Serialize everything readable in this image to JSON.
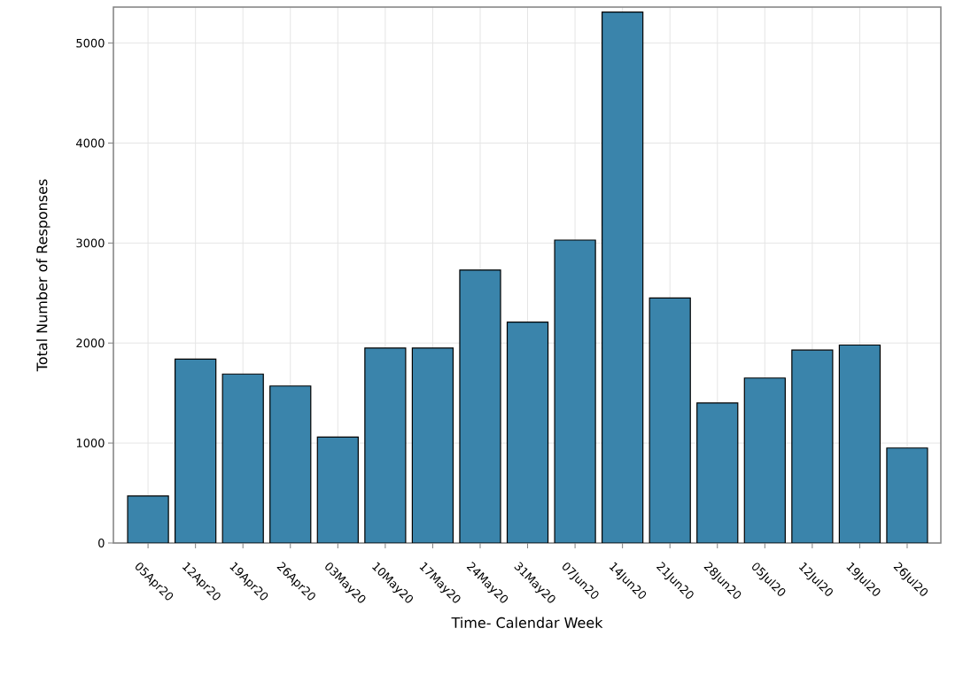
{
  "chart_data": {
    "type": "bar",
    "xlabel": "Time- Calendar Week",
    "ylabel": "Total Number of Responses",
    "categories": [
      "05Apr20",
      "12Apr20",
      "19Apr20",
      "26Apr20",
      "03May20",
      "10May20",
      "17May20",
      "24May20",
      "31May20",
      "07Jun20",
      "14Jun20",
      "21Jun20",
      "28Jun20",
      "05Jul20",
      "12Jul20",
      "19Jul20",
      "26Jul20"
    ],
    "values": [
      470,
      1840,
      1690,
      1570,
      1060,
      1950,
      1950,
      2730,
      2210,
      3030,
      5310,
      2450,
      1400,
      1650,
      1930,
      1980,
      950
    ],
    "color": "#3a84ab",
    "ylim": [
      0,
      5360
    ],
    "yticks": [
      0,
      1000,
      2000,
      3000,
      4000,
      5000
    ],
    "grid": true
  }
}
